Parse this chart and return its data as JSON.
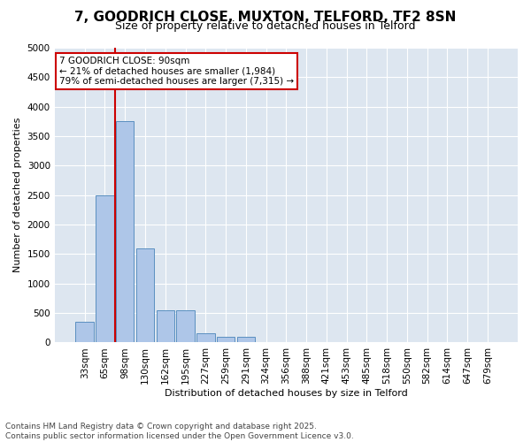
{
  "title_line1": "7, GOODRICH CLOSE, MUXTON, TELFORD, TF2 8SN",
  "title_line2": "Size of property relative to detached houses in Telford",
  "xlabel": "Distribution of detached houses by size in Telford",
  "ylabel": "Number of detached properties",
  "categories": [
    "33sqm",
    "65sqm",
    "98sqm",
    "130sqm",
    "162sqm",
    "195sqm",
    "227sqm",
    "259sqm",
    "291sqm",
    "324sqm",
    "356sqm",
    "388sqm",
    "421sqm",
    "453sqm",
    "485sqm",
    "518sqm",
    "550sqm",
    "582sqm",
    "614sqm",
    "647sqm",
    "679sqm"
  ],
  "values": [
    350,
    2500,
    3750,
    1600,
    550,
    550,
    150,
    100,
    100,
    0,
    0,
    0,
    0,
    0,
    0,
    0,
    0,
    0,
    0,
    0,
    0
  ],
  "bar_color": "#aec6e8",
  "bar_edge_color": "#5a8fc0",
  "vline_color": "#cc0000",
  "annotation_text": "7 GOODRICH CLOSE: 90sqm\n← 21% of detached houses are smaller (1,984)\n79% of semi-detached houses are larger (7,315) →",
  "annotation_box_color": "#cc0000",
  "ylim": [
    0,
    5000
  ],
  "yticks": [
    0,
    500,
    1000,
    1500,
    2000,
    2500,
    3000,
    3500,
    4000,
    4500,
    5000
  ],
  "background_color": "#dde6f0",
  "footer_text": "Contains HM Land Registry data © Crown copyright and database right 2025.\nContains public sector information licensed under the Open Government Licence v3.0.",
  "title_fontsize": 11,
  "subtitle_fontsize": 9,
  "axis_label_fontsize": 8,
  "tick_fontsize": 7.5,
  "footer_fontsize": 6.5
}
